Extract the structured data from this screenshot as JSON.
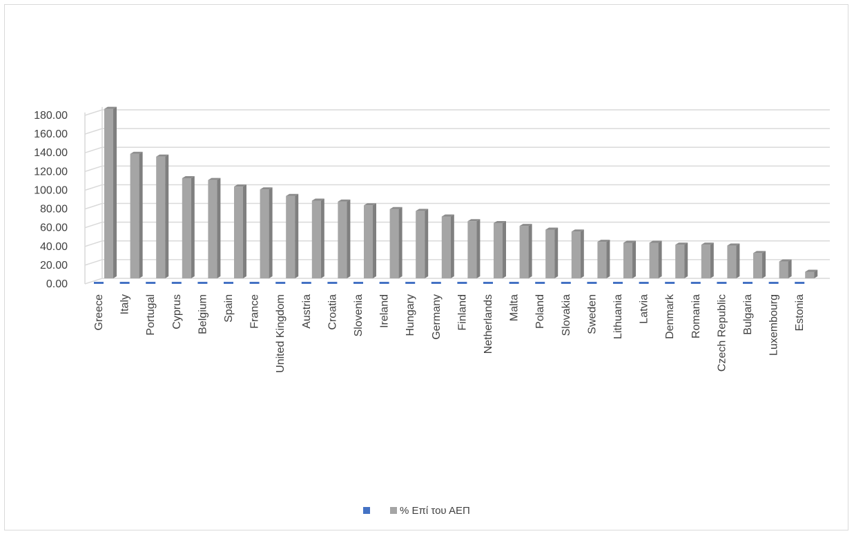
{
  "chart_data": {
    "type": "bar",
    "title": "",
    "xlabel": "",
    "ylabel": "",
    "ylim": [
      0,
      180
    ],
    "yticks": [
      "0.00",
      "20.00",
      "40.00",
      "60.00",
      "80.00",
      "100.00",
      "120.00",
      "140.00",
      "160.00",
      "180.00"
    ],
    "grid": true,
    "legend_position": "bottom",
    "categories": [
      "Greece",
      "Italy",
      "Portugal",
      "Cyprus",
      "Belgium",
      "Spain",
      "France",
      "United Kingdom",
      "Austria",
      "Croatia",
      "Slovenia",
      "Ireland",
      "Hungary",
      "Germany",
      "Finland",
      "Netherlands",
      "Malta",
      "Poland",
      "Slovakia",
      "Sweden",
      "Lithuania",
      "Latvia",
      "Denmark",
      "Romania",
      "Czech Republic",
      "Bulgaria",
      "Luxembourg",
      "Estonia"
    ],
    "series": [
      {
        "name": "",
        "color": "#4472c4",
        "values": [
          0,
          0,
          0,
          0,
          0,
          0,
          0,
          0,
          0,
          0,
          0,
          0,
          0,
          0,
          0,
          0,
          0,
          0,
          0,
          0,
          0,
          0,
          0,
          0,
          0,
          0,
          0,
          0
        ]
      },
      {
        "name": "% Επί του ΑΕΠ",
        "color": "#a5a5a5",
        "values": [
          181,
          133,
          130,
          107,
          105,
          98,
          95,
          88,
          83,
          82,
          78,
          74,
          72,
          66,
          61,
          59,
          56,
          52,
          50,
          39,
          38,
          38,
          36,
          36,
          35,
          27,
          18,
          7
        ]
      }
    ]
  }
}
